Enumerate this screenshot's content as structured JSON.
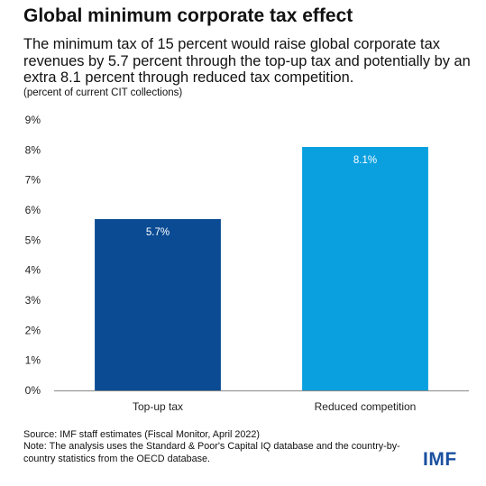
{
  "header": {
    "title": "Global minimum corporate tax effect",
    "subtitle": "The minimum tax of 15 percent would raise global corporate tax revenues by 5.7 percent through the top-up tax and potentially by an extra 8.1 percent through reduced tax competition.",
    "unit_note": "(percent of current CIT collections)"
  },
  "chart_data": {
    "type": "bar",
    "categories": [
      "Top-up tax",
      "Reduced competition"
    ],
    "values": [
      5.7,
      8.1
    ],
    "data_labels": [
      "5.7%",
      "8.1%"
    ],
    "bar_colors": [
      "#0b4b94",
      "#0aa0e0"
    ],
    "ylim": [
      0,
      9
    ],
    "yticks": [
      0,
      1,
      2,
      3,
      4,
      5,
      6,
      7,
      8,
      9
    ],
    "ytick_labels": [
      "0%",
      "1%",
      "2%",
      "3%",
      "4%",
      "5%",
      "6%",
      "7%",
      "8%",
      "9%"
    ],
    "grid": false,
    "legend": "none"
  },
  "footer": {
    "source": "Source: IMF staff estimates (Fiscal Monitor, April 2022)",
    "note": "Note: The analysis uses the Standard & Poor's Capital IQ database and the country-by-country statistics from the OECD database."
  },
  "logo": {
    "text": "IMF",
    "color": "#1a4fa0"
  }
}
